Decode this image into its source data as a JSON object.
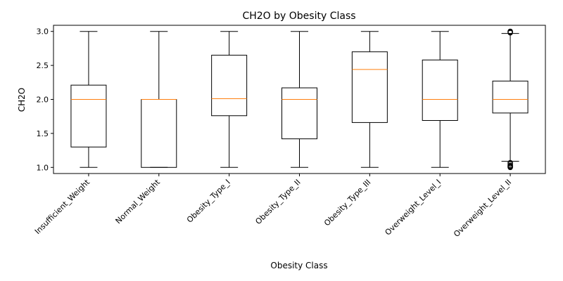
{
  "chart_data": {
    "type": "box",
    "title": "CH2O by Obesity Class",
    "xlabel": "Obesity Class",
    "ylabel": "CH2O",
    "ylim": [
      0.91,
      3.09
    ],
    "yticks": [
      "1.0",
      "1.5",
      "2.0",
      "2.5",
      "3.0"
    ],
    "categories": [
      "Insufficient_Weight",
      "Normal_Weight",
      "Obesity_Type_I",
      "Obesity_Type_II",
      "Obesity_Type_III",
      "Overweight_Level_I",
      "Overweight_Level_II"
    ],
    "boxes": [
      {
        "whisker_low": 1.0,
        "q1": 1.3,
        "median": 2.0,
        "q3": 2.21,
        "whisker_high": 3.0,
        "outliers": []
      },
      {
        "whisker_low": 1.0,
        "q1": 1.0,
        "median": 2.0,
        "q3": 2.0,
        "whisker_high": 3.0,
        "outliers": []
      },
      {
        "whisker_low": 1.0,
        "q1": 1.76,
        "median": 2.01,
        "q3": 2.65,
        "whisker_high": 3.0,
        "outliers": []
      },
      {
        "whisker_low": 1.0,
        "q1": 1.42,
        "median": 2.0,
        "q3": 2.17,
        "whisker_high": 3.0,
        "outliers": []
      },
      {
        "whisker_low": 1.0,
        "q1": 1.66,
        "median": 2.44,
        "q3": 2.7,
        "whisker_high": 3.0,
        "outliers": []
      },
      {
        "whisker_low": 1.0,
        "q1": 1.69,
        "median": 2.0,
        "q3": 2.58,
        "whisker_high": 3.0,
        "outliers": []
      },
      {
        "whisker_low": 1.09,
        "q1": 1.8,
        "median": 2.0,
        "q3": 2.27,
        "whisker_high": 2.97,
        "outliers": [
          1.0,
          1.01,
          1.02,
          1.03,
          1.05,
          1.07,
          2.98,
          2.99,
          3.0,
          3.0
        ]
      }
    ],
    "colors": {
      "box": "#000000",
      "median": "#ff7f0e",
      "background": "#ffffff"
    }
  }
}
